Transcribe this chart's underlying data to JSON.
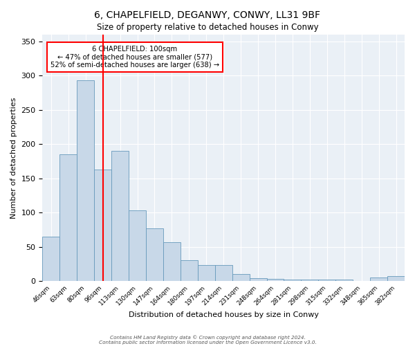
{
  "title": "6, CHAPELFIELD, DEGANWY, CONWY, LL31 9BF",
  "subtitle": "Size of property relative to detached houses in Conwy",
  "xlabel": "Distribution of detached houses by size in Conwy",
  "ylabel": "Number of detached properties",
  "bar_color": "#c8d8e8",
  "bar_edge_color": "#6699bb",
  "background_color": "#eaf0f6",
  "vline_color": "red",
  "annotation_line1": "6 CHAPELFIELD: 100sqm",
  "annotation_line2": "← 47% of detached houses are smaller (577)",
  "annotation_line3": "52% of semi-detached houses are larger (638) →",
  "footer1": "Contains HM Land Registry data © Crown copyright and database right 2024.",
  "footer2": "Contains public sector information licensed under the Open Government Licence v3.0.",
  "categories": [
    "46sqm",
    "63sqm",
    "80sqm",
    "96sqm",
    "113sqm",
    "130sqm",
    "147sqm",
    "164sqm",
    "180sqm",
    "197sqm",
    "214sqm",
    "231sqm",
    "248sqm",
    "264sqm",
    "281sqm",
    "298sqm",
    "315sqm",
    "332sqm",
    "348sqm",
    "365sqm",
    "382sqm"
  ],
  "values": [
    65,
    185,
    293,
    163,
    190,
    103,
    77,
    57,
    30,
    23,
    23,
    10,
    4,
    3,
    2,
    2,
    2,
    2,
    0,
    5,
    7
  ],
  "vline_index": 3.5,
  "ylim": [
    0,
    360
  ],
  "yticks": [
    0,
    50,
    100,
    150,
    200,
    250,
    300,
    350
  ],
  "figwidth": 6.0,
  "figheight": 5.0,
  "dpi": 100
}
